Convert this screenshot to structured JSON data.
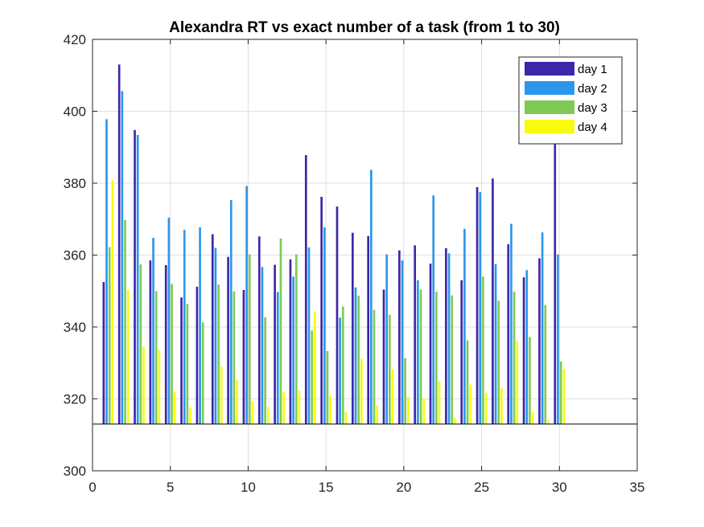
{
  "chart_data": {
    "type": "bar",
    "title": "Alexandra RT vs exact number of a task (from 1 to 30)",
    "xlabel": "",
    "ylabel": "",
    "xlim": [
      0,
      35
    ],
    "ylim": [
      300,
      420
    ],
    "xticks": [
      0,
      5,
      10,
      15,
      20,
      25,
      30,
      35
    ],
    "yticks": [
      300,
      320,
      340,
      360,
      380,
      400,
      420
    ],
    "grid": true,
    "baseline": 313,
    "legend_position": "top-right",
    "x": [
      1,
      2,
      3,
      4,
      5,
      6,
      7,
      8,
      9,
      10,
      11,
      12,
      13,
      14,
      15,
      16,
      17,
      18,
      19,
      20,
      21,
      22,
      23,
      24,
      25,
      26,
      27,
      28,
      29,
      30
    ],
    "series": [
      {
        "name": "day 1",
        "color": "#3d26a8",
        "values": [
          352.5,
          413,
          394.8,
          358.5,
          357.2,
          348.2,
          351.2,
          365.8,
          359.5,
          350.3,
          365.2,
          357.3,
          358.8,
          387.8,
          376.2,
          373.5,
          366.2,
          365.3,
          350.4,
          361.3,
          362.7,
          357.6,
          361.9,
          353.0,
          378.9,
          381.3,
          363.0,
          353.8,
          359.1,
          391.5
        ]
      },
      {
        "name": "day 2",
        "color": "#2c96eb",
        "values": [
          397.8,
          405.6,
          393.4,
          364.8,
          370.4,
          367.0,
          367.7,
          362.0,
          375.3,
          379.2,
          356.7,
          349.7,
          354.0,
          362.1,
          367.7,
          342.6,
          351.0,
          383.7,
          360.2,
          358.5,
          353.0,
          376.6,
          360.5,
          367.3,
          377.5,
          357.5,
          368.7,
          355.8,
          366.3,
          360.2
        ]
      },
      {
        "name": "day 3",
        "color": "#7fca54",
        "values": [
          362.2,
          369.8,
          357.4,
          350.0,
          352.0,
          346.4,
          341.3,
          351.8,
          349.9,
          360.2,
          342.7,
          364.6,
          360.2,
          339.0,
          333.3,
          345.7,
          348.7,
          344.8,
          343.4,
          331.3,
          350.4,
          349.8,
          348.8,
          336.3,
          354.0,
          347.3,
          349.8,
          337.2,
          346.1,
          330.4
        ]
      },
      {
        "name": "day 4",
        "color": "#f9fb0e",
        "values": [
          380.8,
          350.3,
          334.5,
          333.6,
          322.0,
          317.6,
          313.0,
          329.0,
          325.3,
          319.3,
          317.8,
          322.0,
          322.3,
          344.2,
          320.8,
          316.3,
          331.2,
          318.2,
          328.2,
          320.6,
          320.1,
          325.0,
          314.7,
          324.0,
          321.7,
          323.1,
          336.1,
          316.3,
          314.1,
          328.4
        ]
      }
    ]
  }
}
